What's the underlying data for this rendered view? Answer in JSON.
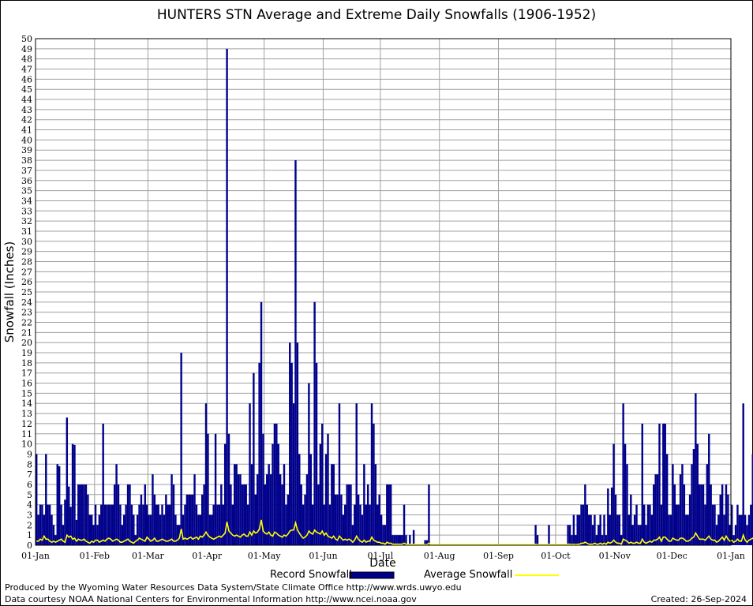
{
  "chart_data": {
    "type": "bar",
    "title": "HUNTERS STN Average and Extreme Daily Snowfalls (1906-1952)",
    "xlabel": "Date",
    "ylabel": "Snowfall (Inches)",
    "ylim": [
      0,
      50
    ],
    "xlim_day_of_year": [
      1,
      366
    ],
    "x_tick_labels": [
      "01-Jan",
      "01-Feb",
      "01-Mar",
      "01-Apr",
      "01-May",
      "01-Jun",
      "01-Jul",
      "01-Aug",
      "01-Sep",
      "01-Oct",
      "01-Nov",
      "01-Dec",
      "01-Jan"
    ],
    "y_ticks": [
      0,
      1,
      2,
      3,
      4,
      5,
      6,
      7,
      8,
      9,
      10,
      11,
      12,
      13,
      14,
      15,
      16,
      17,
      18,
      19,
      20,
      21,
      22,
      23,
      24,
      25,
      26,
      27,
      28,
      29,
      30,
      31,
      32,
      33,
      34,
      35,
      36,
      37,
      38,
      39,
      40,
      41,
      42,
      43,
      44,
      45,
      46,
      47,
      48,
      49,
      50
    ],
    "grid": true,
    "legend_position": "bottom",
    "colors": {
      "record": "#00008b",
      "average": "#ffff00",
      "grid": "#a0a0a0"
    },
    "series": [
      {
        "name": "Record Snowfall",
        "type": "bar",
        "day_of_year_start": 1,
        "values": [
          9,
          3,
          4,
          4,
          3,
          9,
          4,
          4,
          3,
          2,
          1,
          8,
          7.8,
          4,
          2,
          4.5,
          12.6,
          5.8,
          3.8,
          10,
          9.9,
          2.5,
          6,
          6,
          6,
          6,
          6,
          5,
          3,
          3,
          2,
          4,
          2,
          3,
          4,
          12,
          4,
          4,
          4,
          4,
          4,
          6,
          8,
          6,
          4,
          2,
          3,
          4,
          6,
          6,
          4,
          3,
          1,
          3,
          4,
          5,
          4,
          6,
          4,
          3,
          3,
          7,
          5,
          4,
          4,
          3,
          4,
          3,
          5,
          4,
          4,
          7,
          6,
          3,
          2,
          2,
          19,
          3,
          4,
          5,
          5,
          5,
          5,
          7,
          4,
          3,
          3,
          5,
          6,
          14,
          11,
          3,
          3,
          4,
          11,
          4,
          4,
          6,
          4,
          10,
          49,
          11,
          6,
          4,
          8,
          8,
          7,
          7,
          6,
          6,
          6,
          4,
          14,
          8,
          17,
          5,
          7,
          18,
          24,
          11,
          6,
          7,
          8,
          7,
          10,
          12,
          12,
          10,
          7,
          6,
          8,
          4,
          5,
          20,
          18,
          14,
          38,
          20,
          9,
          6,
          4,
          5,
          7,
          16,
          9,
          4,
          24,
          18,
          6,
          10,
          12,
          4,
          9,
          11,
          4,
          8,
          8,
          5,
          5,
          14,
          5,
          3,
          4,
          6,
          6,
          6,
          2,
          4,
          14,
          5,
          4,
          3,
          8,
          4,
          6,
          4,
          14,
          12,
          8,
          4,
          5,
          3,
          2,
          2,
          6,
          6,
          6,
          1,
          1,
          1,
          1,
          1,
          1,
          4,
          1,
          0,
          1,
          0,
          1.5,
          0,
          0,
          0,
          0,
          0,
          0.5,
          0.5,
          6,
          0,
          0,
          0,
          0,
          0,
          0,
          0,
          0,
          0,
          0,
          0,
          0,
          0,
          0,
          0,
          0,
          0,
          0,
          0,
          0,
          0,
          0,
          0,
          0,
          0,
          0,
          0,
          0,
          0,
          0,
          0,
          0,
          0,
          0,
          0,
          0,
          0,
          0,
          0,
          0,
          0,
          0,
          0,
          0,
          0,
          0,
          0,
          0,
          0,
          0,
          0,
          0,
          0,
          0,
          0,
          2,
          1,
          0,
          0,
          0,
          0,
          0,
          2,
          0,
          0,
          0,
          0,
          0,
          0,
          0,
          0,
          0,
          2,
          2,
          1,
          3,
          1,
          3,
          3,
          4,
          4,
          6,
          4,
          3,
          3,
          2,
          3,
          1,
          2,
          3,
          1,
          3,
          1,
          5.6,
          3,
          5.7,
          10,
          5,
          3,
          3,
          1,
          14,
          10,
          8,
          3,
          5,
          2,
          3,
          4,
          2,
          2,
          12,
          4,
          2,
          4,
          4,
          3,
          6,
          7,
          7,
          12,
          4,
          12,
          12,
          9,
          3,
          3,
          8,
          6,
          4,
          4,
          7,
          8,
          6,
          3,
          3,
          5,
          8,
          9.5,
          15,
          10,
          6,
          6,
          6,
          4,
          8,
          11,
          6,
          4,
          4,
          2,
          3,
          5,
          6,
          3,
          6,
          5,
          2,
          4,
          1,
          2,
          4,
          3,
          3,
          14,
          3,
          2,
          3,
          4,
          9,
          4,
          9,
          5,
          2,
          9,
          2,
          9,
          3,
          3,
          2,
          7.1,
          7.2,
          7.5,
          6,
          3,
          7,
          6.9,
          8.5,
          6,
          3,
          1,
          4,
          2,
          3,
          3,
          8,
          2,
          4,
          4,
          3
        ]
      },
      {
        "name": "Average Snowfall",
        "type": "line",
        "day_of_year_start": 1,
        "values": [
          0.4,
          0.4,
          0.6,
          0.5,
          0.9,
          0.6,
          0.6,
          0.4,
          0.3,
          0.4,
          0.3,
          0.4,
          0.5,
          0.6,
          0.4,
          0.3,
          1.0,
          0.8,
          0.9,
          0.6,
          0.7,
          0.4,
          0.6,
          0.5,
          0.5,
          0.6,
          0.4,
          0.3,
          0.2,
          0.4,
          0.3,
          0.5,
          0.5,
          0.3,
          0.4,
          0.5,
          0.4,
          0.6,
          0.7,
          0.6,
          0.4,
          0.5,
          0.6,
          0.5,
          0.3,
          0.3,
          0.4,
          0.5,
          0.6,
          0.4,
          0.3,
          0.2,
          0.4,
          0.5,
          0.7,
          0.6,
          0.5,
          0.4,
          0.8,
          0.6,
          0.4,
          0.5,
          0.7,
          0.4,
          0.4,
          0.5,
          0.6,
          0.5,
          0.4,
          0.4,
          0.5,
          0.6,
          0.4,
          0.4,
          0.5,
          0.7,
          1.6,
          0.6,
          0.7,
          0.6,
          0.7,
          0.8,
          0.6,
          0.7,
          0.8,
          0.6,
          0.9,
          0.8,
          1.0,
          1.3,
          1.0,
          0.8,
          0.7,
          0.6,
          0.7,
          0.8,
          0.9,
          0.8,
          1.0,
          1.2,
          2.3,
          1.4,
          1.2,
          1.0,
          0.9,
          1.0,
          0.9,
          0.8,
          1.0,
          1.1,
          0.9,
          0.9,
          1.3,
          1.0,
          1.4,
          1.2,
          1.3,
          1.6,
          2.5,
          1.4,
          1.2,
          1.1,
          1.3,
          1.0,
          0.9,
          1.3,
          1.2,
          1.0,
          0.9,
          0.8,
          1.0,
          0.9,
          1.1,
          1.4,
          1.5,
          1.5,
          2.2,
          1.5,
          1.2,
          0.9,
          0.7,
          0.8,
          1.0,
          1.4,
          1.2,
          1.1,
          1.5,
          1.3,
          1.2,
          1.1,
          1.4,
          1.0,
          1.2,
          0.9,
          0.8,
          0.7,
          0.9,
          0.6,
          0.5,
          0.9,
          0.7,
          0.5,
          0.6,
          0.5,
          0.6,
          0.5,
          0.3,
          0.5,
          0.9,
          0.6,
          0.4,
          0.3,
          0.5,
          0.3,
          0.4,
          0.4,
          0.8,
          0.5,
          0.4,
          0.3,
          0.3,
          0.2,
          0.2,
          0.1,
          0.3,
          0.2,
          0.2,
          0.1,
          0.1,
          0.1,
          0.1,
          0.1,
          0.1,
          0.2,
          0.1,
          0.0,
          0.1,
          0.0,
          0.1,
          0.0,
          0.0,
          0.0,
          0.0,
          0.0,
          0.0,
          0.0,
          0.2,
          0.0,
          0.0,
          0.0,
          0.0,
          0.0,
          0.0,
          0.0,
          0.0,
          0.0,
          0.0,
          0.0,
          0.0,
          0.0,
          0.0,
          0.0,
          0.0,
          0.0,
          0.0,
          0.0,
          0.0,
          0.0,
          0.0,
          0.0,
          0.0,
          0.0,
          0.0,
          0.0,
          0.0,
          0.0,
          0.0,
          0.0,
          0.0,
          0.0,
          0.0,
          0.0,
          0.0,
          0.0,
          0.0,
          0.0,
          0.0,
          0.0,
          0.0,
          0.0,
          0.0,
          0.0,
          0.0,
          0.0,
          0.0,
          0.0,
          0.0,
          0.0,
          0.0,
          0.0,
          0.0,
          0.0,
          0.1,
          0.0,
          0.0,
          0.0,
          0.0,
          0.0,
          0.0,
          0.1,
          0.0,
          0.0,
          0.0,
          0.0,
          0.0,
          0.0,
          0.0,
          0.0,
          0.0,
          0.1,
          0.1,
          0.0,
          0.1,
          0.0,
          0.1,
          0.1,
          0.2,
          0.2,
          0.3,
          0.2,
          0.1,
          0.1,
          0.1,
          0.2,
          0.1,
          0.1,
          0.2,
          0.1,
          0.2,
          0.1,
          0.3,
          0.2,
          0.3,
          0.5,
          0.3,
          0.2,
          0.2,
          0.1,
          0.6,
          0.5,
          0.4,
          0.2,
          0.3,
          0.2,
          0.2,
          0.3,
          0.2,
          0.2,
          0.6,
          0.3,
          0.2,
          0.3,
          0.4,
          0.3,
          0.5,
          0.5,
          0.6,
          0.8,
          0.4,
          0.8,
          0.8,
          0.6,
          0.4,
          0.4,
          0.7,
          0.6,
          0.5,
          0.5,
          0.7,
          0.7,
          0.6,
          0.4,
          0.4,
          0.5,
          0.7,
          0.8,
          1.2,
          0.9,
          0.6,
          0.6,
          0.6,
          0.5,
          0.7,
          0.9,
          0.6,
          0.5,
          0.5,
          0.3,
          0.4,
          0.6,
          0.8,
          0.5,
          0.9,
          0.6,
          0.4,
          0.5,
          0.3,
          0.4,
          0.6,
          0.4,
          0.4,
          1.0,
          0.5,
          0.3,
          0.5,
          0.6,
          0.7,
          0.5,
          0.8,
          0.6,
          0.4,
          0.7,
          0.4,
          0.8,
          0.4,
          0.5,
          0.3,
          0.6,
          0.7,
          0.6,
          0.5,
          0.4,
          0.6,
          0.6,
          0.7,
          0.5,
          0.4,
          0.3,
          0.5,
          0.4,
          0.4,
          0.4,
          0.6,
          0.4,
          0.5,
          0.5,
          0.4
        ]
      }
    ]
  },
  "legend": {
    "record_label": "Record Snowfall",
    "average_label": "Average Snowfall"
  },
  "footer": {
    "produced_by": "Produced by the Wyoming Water Resources Data System/State Climate Office http://www.wrds.uwyo.edu",
    "courtesy": "Data courtesy NOAA National Centers for Environmental Information http://www.ncei.noaa.gov",
    "created": "Created:  26-Sep-2024"
  }
}
